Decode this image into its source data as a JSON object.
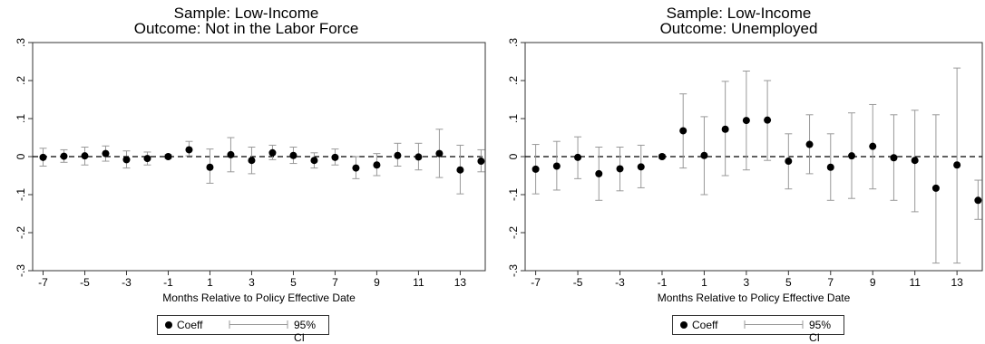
{
  "legend": {
    "coeff_label": "Coeff",
    "ci_label": "95% CI"
  },
  "chart_data": [
    {
      "type": "scatter",
      "title": "Sample: Low-Income",
      "subtitle": "Outcome: Not in the Labor Force",
      "xlabel": "Months Relative to Policy Effective Date",
      "ylabel": "",
      "xlim": [
        -7.5,
        14.2
      ],
      "ylim": [
        -0.3,
        0.3
      ],
      "x_ticks": [
        -7,
        -5,
        -3,
        -1,
        1,
        3,
        5,
        7,
        9,
        11,
        13
      ],
      "y_ticks": [
        -0.3,
        -0.2,
        -0.1,
        0,
        0.1,
        0.2,
        0.3
      ],
      "y_tick_labels": [
        "-.3",
        "-.2",
        "-.1",
        "0",
        ".1",
        ".2",
        ".3"
      ],
      "reference_line": 0,
      "grid": false,
      "legend_position": "bottom",
      "series": [
        {
          "name": "Coeff",
          "x": [
            -7,
            -6,
            -5,
            -4,
            -3,
            -2,
            -1,
            0,
            1,
            2,
            3,
            4,
            5,
            6,
            7,
            8,
            9,
            10,
            11,
            12,
            13,
            14
          ],
          "y": [
            -0.002,
            0.001,
            0.002,
            0.008,
            -0.008,
            -0.005,
            0.0,
            0.018,
            -0.028,
            0.005,
            -0.01,
            0.01,
            0.003,
            -0.01,
            -0.002,
            -0.03,
            -0.022,
            0.003,
            -0.001,
            0.008,
            -0.035,
            -0.012
          ],
          "ci_low": [
            -0.025,
            -0.015,
            -0.022,
            -0.012,
            -0.03,
            -0.022,
            -0.005,
            0.002,
            -0.07,
            -0.04,
            -0.045,
            -0.008,
            -0.018,
            -0.03,
            -0.022,
            -0.058,
            -0.05,
            -0.025,
            -0.035,
            -0.055,
            -0.098,
            -0.04
          ],
          "ci_high": [
            0.022,
            0.018,
            0.025,
            0.028,
            0.015,
            0.012,
            0.005,
            0.04,
            0.02,
            0.05,
            0.025,
            0.03,
            0.025,
            0.01,
            0.02,
            0.0,
            0.008,
            0.035,
            0.035,
            0.072,
            0.03,
            0.018
          ]
        }
      ]
    },
    {
      "type": "scatter",
      "title": "Sample: Low-Income",
      "subtitle": "Outcome: Unemployed",
      "xlabel": "Months Relative to Policy Effective Date",
      "ylabel": "",
      "xlim": [
        -7.5,
        14.2
      ],
      "ylim": [
        -0.3,
        0.3
      ],
      "x_ticks": [
        -7,
        -5,
        -3,
        -1,
        1,
        3,
        5,
        7,
        9,
        11,
        13
      ],
      "y_ticks": [
        -0.3,
        -0.2,
        -0.1,
        0,
        0.1,
        0.2,
        0.3
      ],
      "y_tick_labels": [
        "-.3",
        "-.2",
        "-.1",
        "0",
        ".1",
        ".2",
        ".3"
      ],
      "reference_line": 0,
      "grid": false,
      "legend_position": "bottom",
      "series": [
        {
          "name": "Coeff",
          "x": [
            -7,
            -6,
            -5,
            -4,
            -3,
            -2,
            -1,
            0,
            1,
            2,
            3,
            4,
            5,
            6,
            7,
            8,
            9,
            10,
            11,
            12,
            13,
            14
          ],
          "y": [
            -0.033,
            -0.025,
            -0.002,
            -0.045,
            -0.032,
            -0.027,
            0.0,
            0.068,
            0.003,
            0.072,
            0.095,
            0.096,
            -0.012,
            0.032,
            -0.028,
            0.002,
            0.027,
            -0.003,
            -0.01,
            -0.083,
            -0.022,
            -0.115
          ],
          "ci_low": [
            -0.098,
            -0.088,
            -0.058,
            -0.115,
            -0.09,
            -0.082,
            -0.005,
            -0.03,
            -0.1,
            -0.05,
            -0.035,
            -0.01,
            -0.085,
            -0.045,
            -0.115,
            -0.11,
            -0.085,
            -0.115,
            -0.145,
            -0.28,
            -0.28,
            -0.165
          ],
          "ci_high": [
            0.032,
            0.04,
            0.052,
            0.025,
            0.025,
            0.03,
            0.005,
            0.165,
            0.105,
            0.198,
            0.225,
            0.2,
            0.06,
            0.11,
            0.06,
            0.115,
            0.137,
            0.11,
            0.122,
            0.11,
            0.233,
            -0.062
          ]
        }
      ]
    }
  ]
}
